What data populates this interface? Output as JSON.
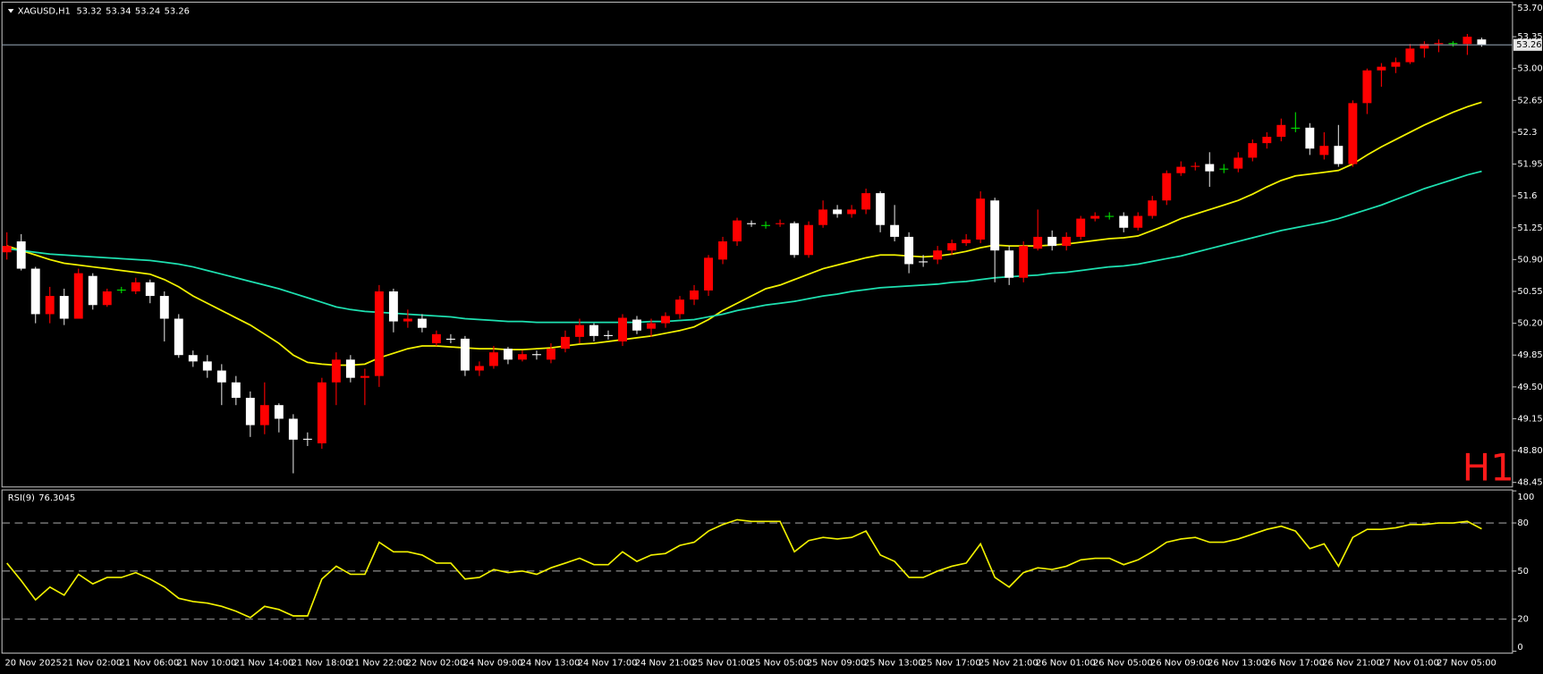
{
  "chart_data": [
    {
      "type": "candlestick",
      "title": "XAGUSD,H1",
      "annotation": "H1",
      "categories": [
        "20 Nov 2025",
        null,
        null,
        null,
        "21 Nov 02:00",
        null,
        null,
        null,
        "21 Nov 06:00",
        null,
        null,
        null,
        "21 Nov 10:00",
        null,
        null,
        null,
        "21 Nov 14:00",
        null,
        null,
        null,
        "21 Nov 18:00",
        null,
        null,
        null,
        "21 Nov 22:00",
        null,
        null,
        null,
        "22 Nov 02:00",
        null,
        null,
        null,
        "24 Nov 09:00",
        null,
        null,
        null,
        "24 Nov 13:00",
        null,
        null,
        null,
        "24 Nov 17:00",
        null,
        null,
        null,
        "24 Nov 21:00",
        null,
        null,
        null,
        "25 Nov 01:00",
        null,
        null,
        null,
        "25 Nov 05:00",
        null,
        null,
        null,
        "25 Nov 09:00",
        null,
        null,
        null,
        "25 Nov 13:00",
        null,
        null,
        null,
        "25 Nov 17:00",
        null,
        null,
        null,
        "25 Nov 21:00",
        null,
        null,
        null,
        "26 Nov 01:00",
        null,
        null,
        null,
        "26 Nov 05:00",
        null,
        null,
        null,
        "26 Nov 09:00",
        null,
        null,
        null,
        "26 Nov 13:00",
        null,
        null,
        null,
        "26 Nov 17:00",
        null,
        null,
        null,
        "26 Nov 21:00",
        null,
        null,
        null,
        "27 Nov 01:00",
        null,
        null,
        null,
        "27 Nov 05:00",
        null,
        null,
        null
      ],
      "open": [
        50.98,
        51.1,
        50.8,
        50.3,
        50.5,
        50.25,
        50.72,
        50.4,
        50.57,
        50.55,
        50.65,
        50.5,
        50.25,
        49.85,
        49.78,
        49.68,
        49.55,
        49.38,
        49.08,
        49.3,
        49.15,
        48.93,
        48.88,
        49.55,
        49.8,
        49.6,
        49.62,
        50.55,
        50.22,
        50.25,
        49.98,
        50.03,
        50.03,
        49.68,
        49.73,
        49.92,
        49.8,
        49.86,
        49.8,
        49.92,
        50.05,
        50.18,
        50.07,
        50.0,
        50.24,
        50.14,
        50.2,
        50.3,
        50.46,
        50.56,
        50.9,
        51.1,
        51.3,
        51.28,
        51.29,
        51.3,
        50.95,
        51.28,
        51.45,
        51.4,
        51.45,
        51.63,
        51.28,
        51.15,
        50.88,
        50.9,
        51.0,
        51.08,
        51.12,
        51.55,
        51.0,
        50.7,
        51.02,
        51.15,
        51.05,
        51.15,
        51.35,
        51.38,
        51.38,
        51.25,
        51.38,
        51.55,
        51.85,
        51.92,
        51.95,
        51.9,
        51.9,
        52.02,
        52.18,
        52.25,
        52.35,
        52.35,
        52.05,
        52.15,
        51.95,
        52.62,
        52.98,
        53.02,
        53.07,
        53.22,
        53.27,
        53.28,
        53.27,
        53.32
      ],
      "high": [
        51.2,
        51.18,
        50.82,
        50.6,
        50.58,
        50.8,
        50.75,
        50.58,
        50.6,
        50.7,
        50.68,
        50.55,
        50.3,
        49.9,
        49.85,
        49.75,
        49.62,
        49.45,
        49.55,
        49.32,
        49.2,
        49.0,
        49.6,
        49.88,
        49.85,
        49.7,
        50.62,
        50.58,
        50.35,
        50.3,
        50.12,
        50.08,
        50.06,
        49.78,
        49.95,
        49.94,
        49.9,
        49.9,
        49.98,
        50.12,
        50.25,
        50.2,
        50.12,
        50.3,
        50.28,
        50.25,
        50.32,
        50.5,
        50.62,
        50.95,
        51.15,
        51.36,
        51.33,
        51.32,
        51.34,
        51.32,
        51.32,
        51.55,
        51.5,
        51.5,
        51.68,
        51.65,
        51.5,
        51.2,
        50.95,
        51.05,
        51.12,
        51.18,
        51.65,
        51.58,
        51.05,
        51.1,
        51.45,
        51.22,
        51.2,
        51.38,
        51.42,
        51.42,
        51.42,
        51.42,
        51.6,
        51.88,
        51.98,
        51.97,
        52.08,
        51.95,
        52.08,
        52.22,
        52.3,
        52.45,
        52.52,
        52.4,
        52.3,
        52.38,
        52.65,
        53.0,
        53.06,
        53.12,
        53.27,
        53.3,
        53.32,
        53.3,
        53.38,
        53.34
      ],
      "low": [
        50.9,
        50.78,
        50.2,
        50.2,
        50.18,
        50.25,
        50.35,
        50.38,
        50.53,
        50.52,
        50.42,
        50.0,
        49.82,
        49.72,
        49.6,
        49.3,
        49.3,
        48.95,
        48.98,
        49.0,
        48.55,
        48.85,
        48.82,
        49.3,
        49.55,
        49.3,
        49.5,
        50.1,
        50.15,
        50.1,
        49.95,
        49.98,
        49.62,
        49.62,
        49.7,
        49.75,
        49.78,
        49.8,
        49.76,
        49.88,
        49.98,
        50.0,
        50.02,
        49.95,
        50.08,
        50.05,
        50.15,
        50.25,
        50.4,
        50.5,
        50.85,
        51.05,
        51.26,
        51.24,
        51.26,
        50.92,
        50.92,
        51.25,
        51.36,
        51.36,
        51.4,
        51.2,
        51.1,
        50.75,
        50.82,
        50.85,
        50.95,
        51.05,
        51.08,
        50.65,
        50.62,
        50.65,
        51.0,
        51.0,
        51.0,
        51.12,
        51.32,
        51.34,
        51.2,
        51.22,
        51.35,
        51.5,
        51.82,
        51.88,
        51.7,
        51.85,
        51.86,
        51.98,
        52.12,
        52.2,
        52.3,
        52.05,
        52.0,
        51.92,
        51.92,
        52.5,
        52.8,
        52.95,
        53.05,
        53.12,
        53.18,
        53.24,
        53.15,
        53.24
      ],
      "close": [
        51.05,
        50.8,
        50.3,
        50.5,
        50.25,
        50.75,
        50.4,
        50.55,
        50.57,
        50.65,
        50.5,
        50.25,
        49.85,
        49.78,
        49.68,
        49.55,
        49.38,
        49.08,
        49.3,
        49.15,
        48.92,
        48.92,
        49.55,
        49.8,
        49.6,
        49.62,
        50.55,
        50.22,
        50.25,
        50.15,
        50.08,
        50.02,
        49.68,
        49.73,
        49.88,
        49.8,
        49.86,
        49.85,
        49.92,
        50.05,
        50.18,
        50.06,
        50.06,
        50.26,
        50.12,
        50.2,
        50.28,
        50.46,
        50.56,
        50.92,
        51.1,
        51.33,
        51.29,
        51.28,
        51.3,
        50.95,
        51.28,
        51.45,
        51.4,
        51.45,
        51.63,
        51.28,
        51.15,
        50.85,
        50.87,
        51.0,
        51.08,
        51.12,
        51.57,
        51.0,
        50.7,
        51.05,
        51.15,
        51.05,
        51.15,
        51.35,
        51.38,
        51.38,
        51.25,
        51.38,
        51.55,
        51.85,
        51.92,
        51.93,
        51.87,
        51.9,
        52.02,
        52.18,
        52.25,
        52.38,
        52.35,
        52.12,
        52.15,
        51.95,
        52.62,
        52.98,
        53.02,
        53.07,
        53.22,
        53.27,
        53.28,
        53.28,
        53.35,
        53.26
      ],
      "bull_color": "#ff0000",
      "bear_color": "#ffffff",
      "doji_color": "#00e000",
      "annotation_color": "#ff1a1a",
      "price_line_color": "#8a9aa8",
      "lines": [
        {
          "color": "#f2f200",
          "values": [
            51.05,
            51.0,
            50.95,
            50.9,
            50.86,
            50.84,
            50.82,
            50.8,
            50.78,
            50.76,
            50.74,
            50.68,
            50.6,
            50.5,
            50.42,
            50.34,
            50.26,
            50.18,
            50.08,
            49.98,
            49.85,
            49.77,
            49.75,
            49.74,
            49.74,
            49.75,
            49.82,
            49.87,
            49.92,
            49.95,
            49.95,
            49.94,
            49.93,
            49.92,
            49.92,
            49.91,
            49.91,
            49.92,
            49.93,
            49.95,
            49.97,
            49.98,
            50.0,
            50.02,
            50.04,
            50.06,
            50.09,
            50.12,
            50.16,
            50.24,
            50.34,
            50.42,
            50.5,
            50.58,
            50.62,
            50.68,
            50.74,
            50.8,
            50.84,
            50.88,
            50.92,
            50.95,
            50.95,
            50.94,
            50.93,
            50.94,
            50.96,
            50.99,
            51.03,
            51.06,
            51.05,
            51.05,
            51.05,
            51.06,
            51.07,
            51.09,
            51.11,
            51.13,
            51.14,
            51.16,
            51.22,
            51.28,
            51.35,
            51.4,
            51.45,
            51.5,
            51.55,
            51.62,
            51.7,
            51.77,
            51.82,
            51.84,
            51.86,
            51.88,
            51.95,
            52.05,
            52.14,
            52.22,
            52.3,
            52.38,
            52.45,
            52.52,
            52.58,
            52.63
          ]
        },
        {
          "color": "#1ee0b0",
          "values": [
            51.02,
            51.0,
            50.98,
            50.96,
            50.95,
            50.94,
            50.93,
            50.92,
            50.91,
            50.9,
            50.89,
            50.87,
            50.85,
            50.82,
            50.78,
            50.74,
            50.7,
            50.66,
            50.62,
            50.58,
            50.53,
            50.48,
            50.43,
            50.38,
            50.35,
            50.33,
            50.32,
            50.31,
            50.3,
            50.29,
            50.28,
            50.27,
            50.25,
            50.24,
            50.23,
            50.22,
            50.22,
            50.21,
            50.21,
            50.21,
            50.21,
            50.21,
            50.21,
            50.21,
            50.21,
            50.22,
            50.22,
            50.23,
            50.24,
            50.27,
            50.3,
            50.34,
            50.37,
            50.4,
            50.42,
            50.44,
            50.47,
            50.5,
            50.52,
            50.55,
            50.57,
            50.59,
            50.6,
            50.61,
            50.62,
            50.63,
            50.65,
            50.66,
            50.68,
            50.7,
            50.71,
            50.72,
            50.73,
            50.75,
            50.76,
            50.78,
            50.8,
            50.82,
            50.83,
            50.85,
            50.88,
            50.91,
            50.94,
            50.98,
            51.02,
            51.06,
            51.1,
            51.14,
            51.18,
            51.22,
            51.25,
            51.28,
            51.31,
            51.35,
            51.4,
            51.45,
            51.5,
            51.56,
            51.62,
            51.68,
            51.73,
            51.78,
            51.83,
            51.87
          ]
        }
      ],
      "ylim": [
        48.4,
        53.73
      ],
      "yticks": [
        {
          "value": 53.7,
          "label": "53.70"
        },
        53.35,
        {
          "value": 53,
          "label": "53.00"
        },
        52.65,
        52.3,
        51.95,
        51.6,
        51.25,
        {
          "value": 50.9,
          "label": "50.90"
        },
        50.55,
        {
          "value": 50.2,
          "label": "50.20"
        },
        49.85,
        {
          "value": 49.5,
          "label": "49.50"
        },
        49.15,
        {
          "value": 48.8,
          "label": "48.80"
        },
        48.45
      ]
    },
    {
      "type": "line",
      "title": "RSI(9)",
      "series": [
        {
          "color": "#f2f200",
          "values": [
            55,
            44,
            32,
            40,
            35,
            48,
            42,
            46,
            46,
            49,
            45,
            40,
            33,
            31,
            30,
            28,
            25,
            21,
            28,
            26,
            22,
            22,
            45,
            53,
            48,
            48,
            68,
            62,
            62,
            60,
            55,
            55,
            45,
            46,
            51,
            49,
            50,
            48,
            52,
            55,
            58,
            54,
            54,
            62,
            56,
            60,
            61,
            66,
            68,
            75,
            79,
            82,
            81,
            81,
            81,
            62,
            69,
            71,
            70,
            71,
            75,
            60,
            56,
            46,
            46,
            50,
            53,
            55,
            67,
            46,
            40,
            49,
            52,
            51,
            53,
            57,
            58,
            58,
            54,
            57,
            62,
            68,
            70,
            71,
            68,
            68,
            70,
            73,
            76,
            78,
            75,
            64,
            67,
            53,
            71,
            76,
            76,
            77,
            79,
            79,
            80,
            80,
            81,
            76.3045
          ]
        }
      ],
      "ylim": [
        0,
        100
      ],
      "yticks": [
        0,
        20,
        50,
        80,
        100
      ],
      "level_color": "#9a9a9a"
    }
  ]
}
